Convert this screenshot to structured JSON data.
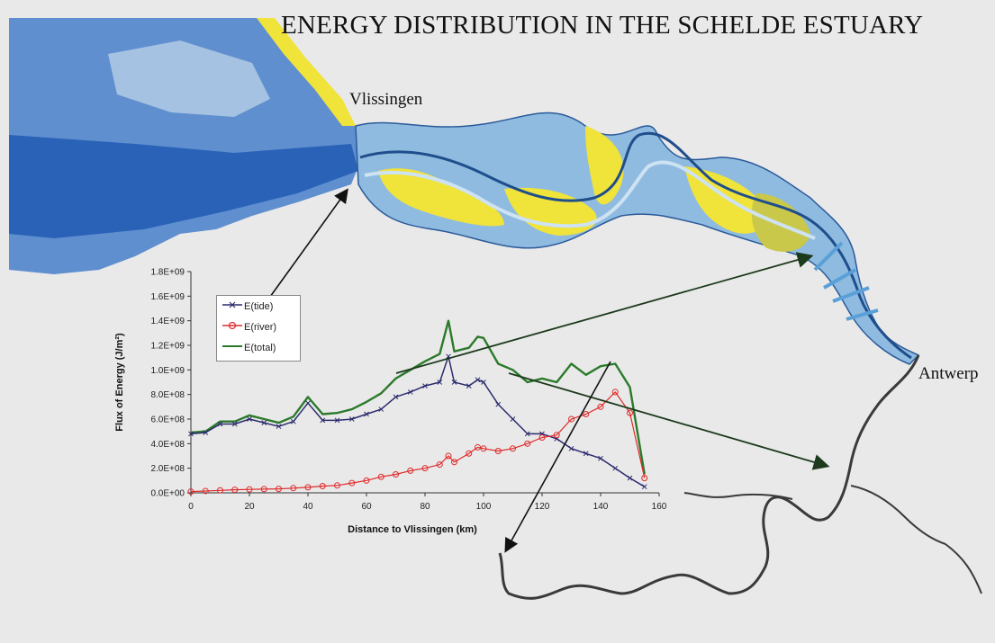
{
  "title": "ENERGY DISTRIBUTION IN THE SCHELDE ESTUARY",
  "places": {
    "vlissingen": "Vlissingen",
    "antwerp": "Antwerp"
  },
  "colors": {
    "sea_dark": "#2a62b8",
    "sea_light": "#8fb2dd",
    "shoal": "#f2e12a",
    "channel": "#a9cbe6",
    "river": "#3a3a3a",
    "tide": "#2b2b6e",
    "river_series": "#e02a2a",
    "total": "#2b7a2b"
  },
  "chart_data": {
    "type": "line",
    "xlabel": "Distance to Vlissingen (km)",
    "ylabel": "Flux of Energy (J/m²)",
    "xlim": [
      0,
      160
    ],
    "ylim": [
      0,
      1800000000
    ],
    "xticks": [
      "0",
      "20",
      "40",
      "60",
      "80",
      "100",
      "120",
      "140",
      "160"
    ],
    "yticks": [
      "0.0E+00",
      "2.0E+08",
      "4.0E+08",
      "6.0E+08",
      "8.0E+08",
      "1.0E+09",
      "1.2E+09",
      "1.4E+09",
      "1.6E+09",
      "1.8E+09"
    ],
    "legend_position": "top-left",
    "x": [
      0,
      5,
      10,
      15,
      20,
      25,
      30,
      35,
      40,
      45,
      50,
      55,
      60,
      65,
      70,
      75,
      80,
      85,
      88,
      90,
      95,
      98,
      100,
      105,
      110,
      115,
      120,
      125,
      130,
      135,
      140,
      145,
      150,
      155
    ],
    "series": [
      {
        "name": "E(tide)",
        "marker": "x",
        "values": [
          480000000,
          490000000,
          560000000,
          560000000,
          600000000,
          570000000,
          540000000,
          580000000,
          730000000,
          590000000,
          590000000,
          600000000,
          640000000,
          680000000,
          780000000,
          820000000,
          870000000,
          900000000,
          1110000000,
          900000000,
          870000000,
          920000000,
          900000000,
          720000000,
          600000000,
          480000000,
          480000000,
          440000000,
          360000000,
          320000000,
          280000000,
          200000000,
          120000000,
          50000000
        ]
      },
      {
        "name": "E(river)",
        "marker": "o",
        "values": [
          10000000,
          15000000,
          20000000,
          25000000,
          28000000,
          30000000,
          32000000,
          38000000,
          45000000,
          55000000,
          60000000,
          80000000,
          100000000,
          130000000,
          150000000,
          180000000,
          200000000,
          230000000,
          300000000,
          250000000,
          320000000,
          370000000,
          360000000,
          340000000,
          360000000,
          400000000,
          450000000,
          470000000,
          600000000,
          640000000,
          700000000,
          820000000,
          650000000,
          120000000
        ]
      },
      {
        "name": "E(total)",
        "marker": "none",
        "values": [
          490000000,
          500000000,
          580000000,
          580000000,
          630000000,
          600000000,
          570000000,
          620000000,
          780000000,
          640000000,
          650000000,
          680000000,
          740000000,
          810000000,
          930000000,
          1000000000,
          1070000000,
          1130000000,
          1400000000,
          1150000000,
          1180000000,
          1270000000,
          1260000000,
          1050000000,
          1000000000,
          900000000,
          930000000,
          900000000,
          1050000000,
          960000000,
          1030000000,
          1050000000,
          860000000,
          150000000
        ]
      }
    ]
  }
}
